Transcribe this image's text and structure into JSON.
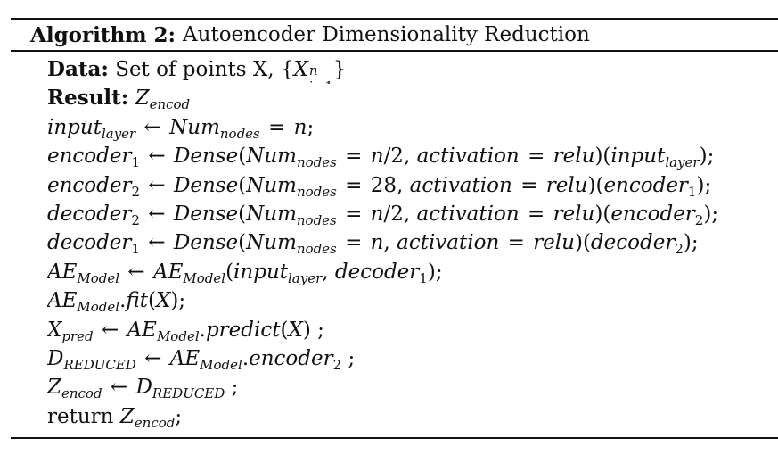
{
  "algorithm": {
    "label": "Algorithm 2:",
    "title": "Autoencoder Dimensionality Reduction",
    "data_label": "Data:",
    "data_text": "Set of points X,",
    "result_label": "Result:",
    "return_word": "return"
  }
}
